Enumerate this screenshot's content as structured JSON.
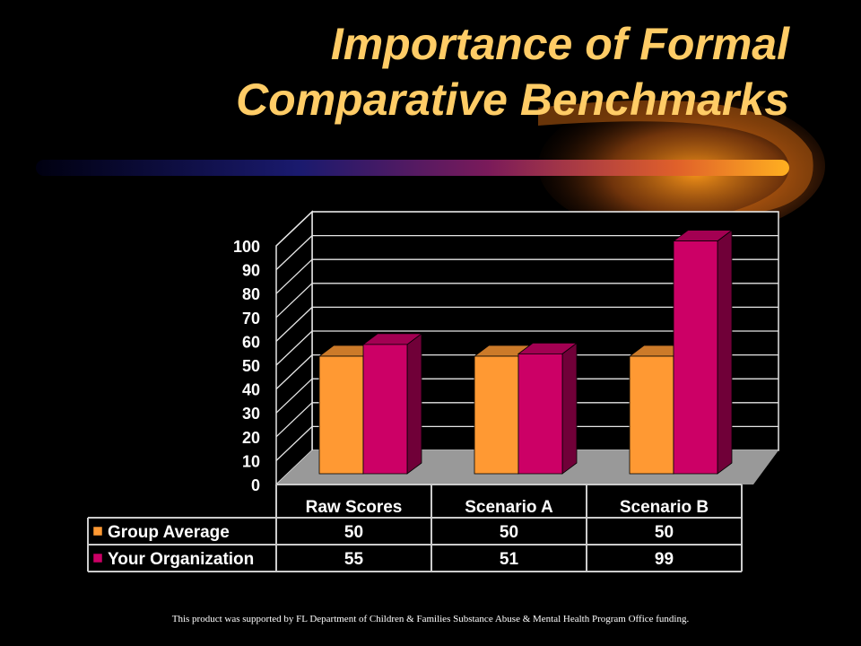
{
  "slide": {
    "title_line1": "Importance of Formal",
    "title_line2": "Comparative Benchmarks",
    "footer": "This product was supported by FL Department of Children & Families Substance Abuse & Mental Health Program Office funding."
  },
  "chart_data": {
    "type": "bar",
    "title": "",
    "xlabel": "",
    "ylabel": "",
    "categories": [
      "Raw Scores",
      "Scenario A",
      "Scenario B"
    ],
    "series": [
      {
        "name": "Group Average",
        "values": [
          50,
          50,
          50
        ],
        "color": "#ff9933"
      },
      {
        "name": "Your Organization",
        "values": [
          55,
          51,
          99
        ],
        "color": "#cc0066"
      }
    ],
    "ylim": [
      0,
      100
    ],
    "yticks": [
      "0",
      "10",
      "20",
      "30",
      "40",
      "50",
      "60",
      "70",
      "80",
      "90",
      "100"
    ],
    "grid": true,
    "three_d": true,
    "data_table": true,
    "colors": {
      "background": "#000000",
      "gridline": "#e6e6e6",
      "floor": "#999999",
      "text": "#ffffff"
    }
  }
}
